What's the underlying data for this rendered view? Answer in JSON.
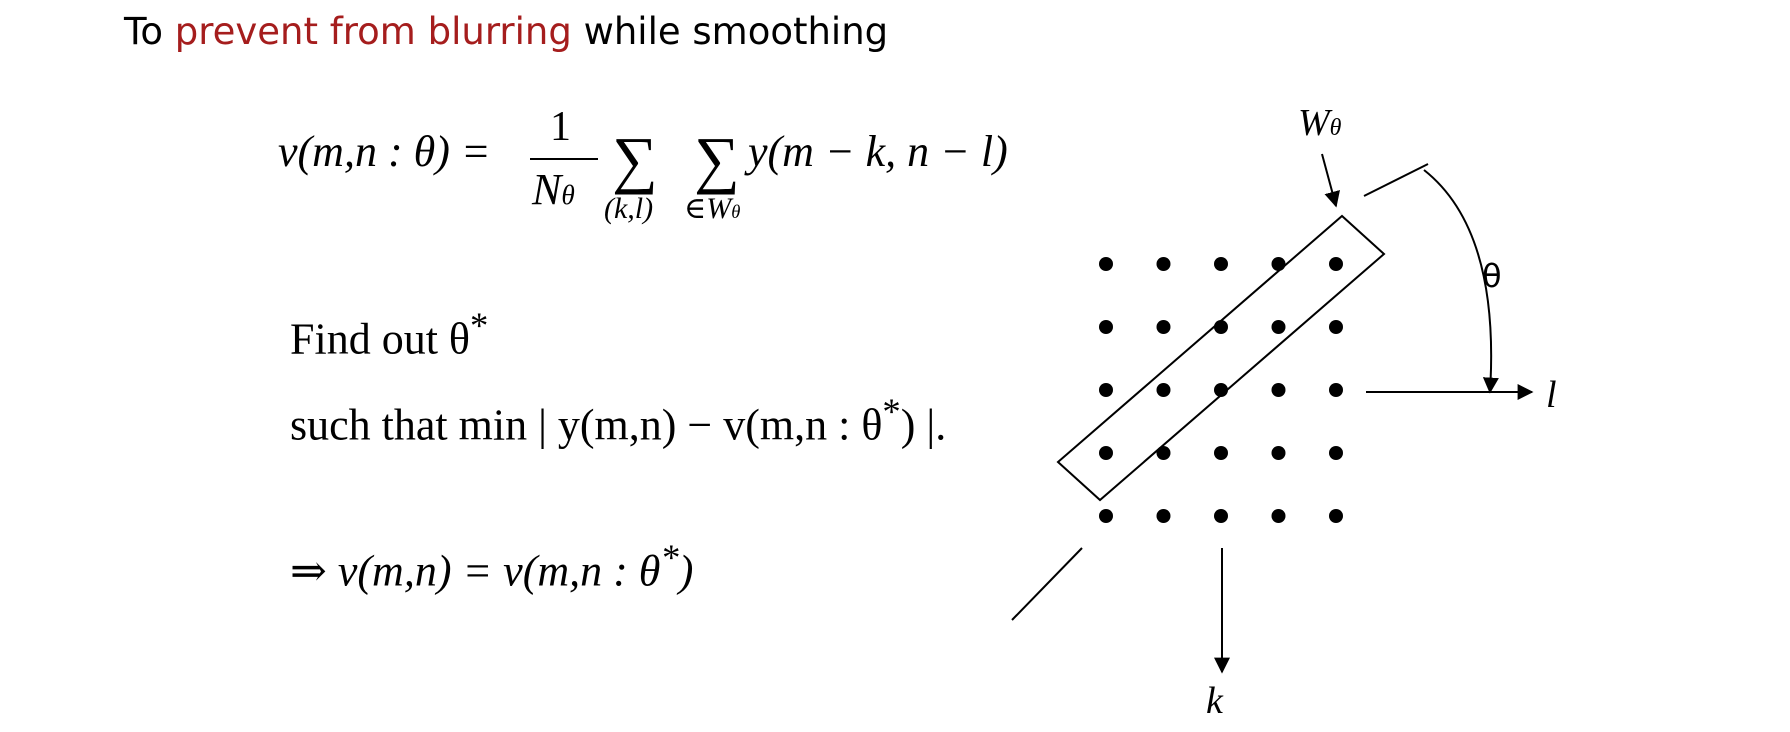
{
  "heading": {
    "prefix": "To ",
    "highlight": "prevent from blurring",
    "suffix": " while smoothing",
    "highlight_color": "#a51d1d"
  },
  "equation": {
    "lhs": "v(m,n : θ) = ",
    "frac_num": "1",
    "frac_den": "N",
    "frac_den_sub": "θ",
    "sum_symbol": "∑",
    "sum1_index": "(k,l)",
    "sum2_index": "∈W",
    "sum2_index_sub": "θ",
    "rhs": "y(m − k, n − l)"
  },
  "find": {
    "text": "Find out θ",
    "sup": "*"
  },
  "such": {
    "text": "such that min | y(m,n) − v(m,n : θ",
    "sup": "*",
    "tail": ") |."
  },
  "implies": {
    "text": "⇒ v(m,n) = v(m,n : θ",
    "sup": "*",
    "tail": ")"
  },
  "diagram": {
    "window_label": "W",
    "window_label_sub": "θ",
    "angle_label": "θ",
    "axis_l_label": "l",
    "axis_k_label": "k",
    "grid_rows": 5,
    "grid_cols": 5
  }
}
